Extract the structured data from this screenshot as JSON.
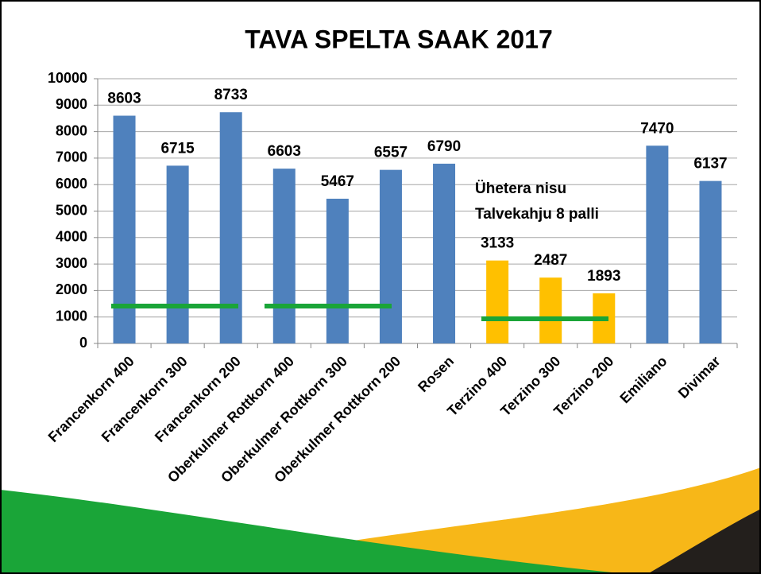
{
  "chart_data": {
    "type": "bar",
    "title": "TAVA SPELTA SAAK 2017",
    "annotations": [
      "Ühetera nisu",
      "Talvekahju 8 palli"
    ],
    "categories": [
      "Francenkorn 400",
      "Francenkorn 300",
      "Francenkorn 200",
      "Oberkulmer Rottkorn 400",
      "Oberkulmer Rottkorn 300",
      "Oberkulmer Rottkorn 200",
      "Rosen",
      "Terzino 400",
      "Terzino 300",
      "Terzino 200",
      "Emiliano",
      "Divimar"
    ],
    "values": [
      8603,
      6715,
      8733,
      6603,
      5467,
      6557,
      6790,
      3133,
      2487,
      1893,
      7470,
      6137
    ],
    "colors": [
      "#4f81bd",
      "#4f81bd",
      "#4f81bd",
      "#4f81bd",
      "#4f81bd",
      "#4f81bd",
      "#4f81bd",
      "#ffc000",
      "#ffc000",
      "#ffc000",
      "#4f81bd",
      "#4f81bd"
    ],
    "ylim": [
      0,
      10000
    ],
    "yticks": [
      0,
      1000,
      2000,
      3000,
      4000,
      5000,
      6000,
      7000,
      8000,
      9000,
      10000
    ],
    "grid": true
  }
}
